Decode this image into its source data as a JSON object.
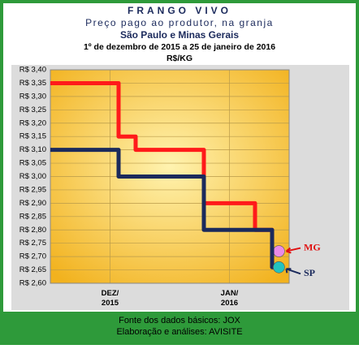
{
  "chart_data": {
    "type": "step-line",
    "title": "FRANGO VIVO",
    "subtitle": "Preço pago ao produtor, na granja",
    "region": "São Paulo e Minas Gerais",
    "period": "1º de dezembro de 2015 a 25 de janeiro de 2016",
    "unit": "R$/KG",
    "source": "Fonte dos dados básicos: JOX",
    "credit": "Elaboração e análises: AVISITE",
    "categories": [
      null,
      null,
      null,
      "DEZ/\n2015",
      null,
      null,
      null,
      null,
      null,
      null,
      "JAN/\n2016",
      null,
      null,
      null
    ],
    "series": [
      {
        "name": "MG",
        "color": "#ff1a1a",
        "marker_color": "#e98be6",
        "values": [
          3.35,
          3.35,
          3.35,
          3.35,
          3.15,
          3.1,
          3.1,
          3.1,
          3.1,
          2.9,
          2.9,
          2.9,
          2.8,
          2.72
        ]
      },
      {
        "name": "SP",
        "color": "#1b2a5c",
        "marker_color": "#22c3c0",
        "values": [
          3.1,
          3.1,
          3.1,
          3.1,
          3.0,
          3.0,
          3.0,
          3.0,
          3.0,
          2.8,
          2.8,
          2.8,
          2.8,
          2.66
        ]
      }
    ],
    "ylim": [
      2.6,
      3.4
    ],
    "yticks": [
      {
        "value": 2.6,
        "label": "R$ 2,60"
      },
      {
        "value": 2.65,
        "label": "R$ 2,65"
      },
      {
        "value": 2.7,
        "label": "R$ 2,70"
      },
      {
        "value": 2.75,
        "label": "R$ 2,75"
      },
      {
        "value": 2.8,
        "label": "R$ 2,80"
      },
      {
        "value": 2.85,
        "label": "R$ 2,85"
      },
      {
        "value": 2.9,
        "label": "R$ 2,90"
      },
      {
        "value": 2.95,
        "label": "R$ 2,95"
      },
      {
        "value": 3.0,
        "label": "R$ 3,00"
      },
      {
        "value": 3.05,
        "label": "R$ 3,05"
      },
      {
        "value": 3.1,
        "label": "R$ 3,10"
      },
      {
        "value": 3.15,
        "label": "R$ 3,15"
      },
      {
        "value": 3.2,
        "label": "R$ 3,20"
      },
      {
        "value": 3.25,
        "label": "R$ 3,25"
      },
      {
        "value": 3.3,
        "label": "R$ 3,30"
      },
      {
        "value": 3.35,
        "label": "R$ 3,35"
      },
      {
        "value": 3.4,
        "label": "R$ 3,40"
      }
    ],
    "grid": true
  }
}
